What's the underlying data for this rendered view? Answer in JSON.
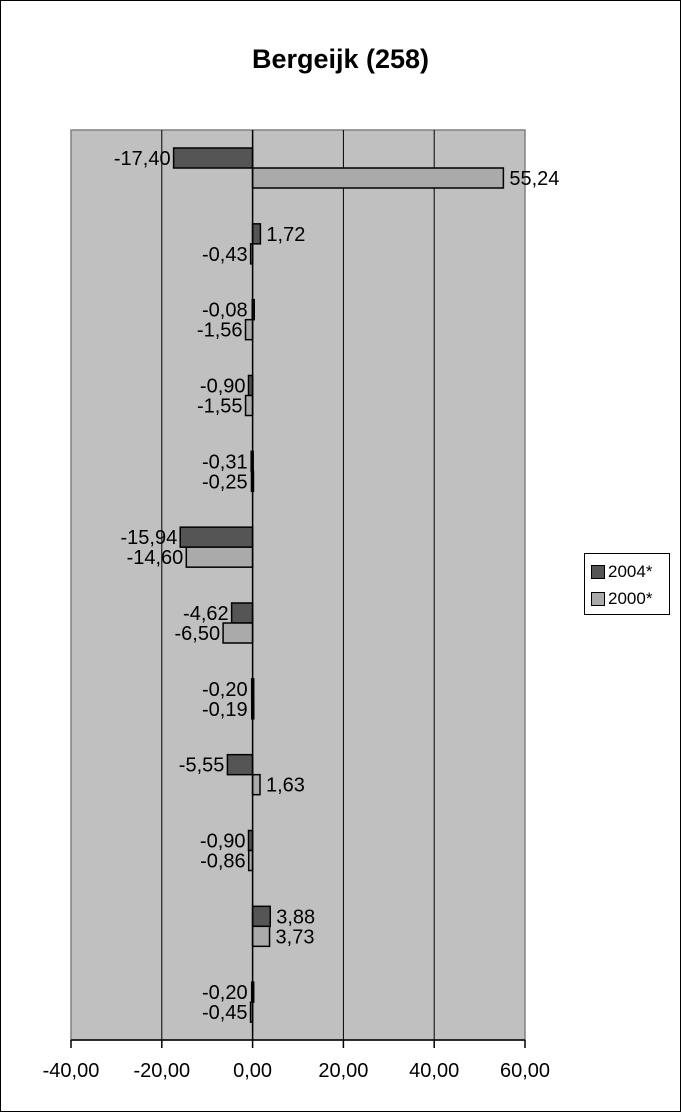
{
  "chart_data": {
    "type": "bar",
    "orientation": "horizontal",
    "title": "Bergeijk (258)",
    "xlabel": "",
    "ylabel": "",
    "xlim": [
      -40,
      60
    ],
    "x_ticks": [
      -40,
      -20,
      0,
      20,
      40,
      60
    ],
    "x_tick_labels": [
      "-40,00",
      "-20,00",
      "0,00",
      "20,00",
      "40,00",
      "60,00"
    ],
    "grid": "vertical",
    "legend_position": "right",
    "categories": [
      "",
      "",
      "",
      "",
      "",
      "",
      "",
      "",
      "",
      "",
      "",
      ""
    ],
    "series": [
      {
        "name": "2004*",
        "color": "#555555",
        "values": [
          -17.4,
          1.72,
          -0.08,
          -0.9,
          -0.31,
          -15.94,
          -4.62,
          -0.2,
          -5.55,
          -0.9,
          3.88,
          -0.2
        ],
        "labels": [
          "-17,40",
          "1,72",
          "-0,08",
          "-0,90",
          "-0,31",
          "-15,94",
          "-4,62",
          "-0,20",
          "-5,55",
          "-0,90",
          "3,88",
          "-0,20"
        ]
      },
      {
        "name": "2000*",
        "color": "#aaaaaa",
        "values": [
          55.24,
          -0.43,
          -1.56,
          -1.55,
          -0.25,
          -14.6,
          -6.5,
          -0.19,
          1.63,
          -0.86,
          3.73,
          -0.45
        ],
        "labels": [
          "55,24",
          "-0,43",
          "-1,56",
          "-1,55",
          "-0,25",
          "-14,60",
          "-6,50",
          "-0,19",
          "1,63",
          "-0,86",
          "3,73",
          "-0,45"
        ]
      }
    ],
    "plot_background": "#c0c0c0"
  }
}
